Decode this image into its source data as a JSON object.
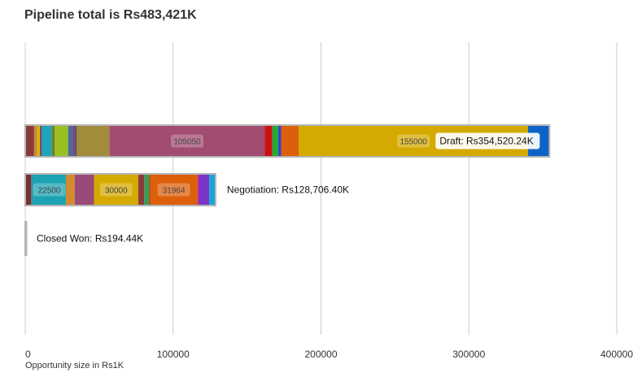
{
  "title": "Pipeline total is Rs483,421K",
  "chart_data": {
    "type": "bar",
    "orientation": "horizontal",
    "stacked": true,
    "title": "Pipeline total is Rs483,421K",
    "xlabel": "Opportunity size in Rs1K",
    "ylabel": "",
    "xlim": [
      0,
      400000
    ],
    "xticks": [
      0,
      100000,
      200000,
      300000,
      400000
    ],
    "grid": true,
    "legend": "none",
    "categories": [
      "Draft",
      "Negotiation",
      "Closed Won"
    ],
    "stage_labels": [
      "Draft: Rs354,520.24K",
      "Negotiation: Rs128,706.40K",
      "Closed Won: Rs194.44K"
    ],
    "bars": [
      {
        "category": "Draft",
        "total": 354520.24,
        "segments": [
          {
            "value": 6000,
            "color": "#8b3a3a",
            "label": ""
          },
          {
            "value": 2000,
            "color": "#c58a3c",
            "label": ""
          },
          {
            "value": 2000,
            "color": "#d8b400",
            "label": ""
          },
          {
            "value": 1000,
            "color": "#8a2f6a",
            "label": ""
          },
          {
            "value": 7000,
            "color": "#1fa6b8",
            "label": ""
          },
          {
            "value": 2000,
            "color": "#6f7f2a",
            "label": ""
          },
          {
            "value": 9000,
            "color": "#9bbf1e",
            "label": ""
          },
          {
            "value": 3000,
            "color": "#4b6b9a",
            "label": ""
          },
          {
            "value": 1500,
            "color": "#7a3b8f",
            "label": ""
          },
          {
            "value": 1500,
            "color": "#5a5a5a",
            "label": ""
          },
          {
            "value": 22000,
            "color": "#a38b3c",
            "label": ""
          },
          {
            "value": 105050,
            "color": "#a24c72",
            "label": "105050"
          },
          {
            "value": 5000,
            "color": "#cc1111",
            "label": ""
          },
          {
            "value": 4000,
            "color": "#22aa33",
            "label": ""
          },
          {
            "value": 2000,
            "color": "#3344cc",
            "label": ""
          },
          {
            "value": 12000,
            "color": "#dd5f0a",
            "label": ""
          },
          {
            "value": 155000,
            "color": "#d4aa00",
            "label": "155000"
          },
          {
            "value": 14470.24,
            "color": "#0c63c6",
            "label": ""
          }
        ]
      },
      {
        "category": "Negotiation",
        "total": 128706.4,
        "segments": [
          {
            "value": 4000,
            "color": "#7a2f2f",
            "label": ""
          },
          {
            "value": 1000,
            "color": "#2a8a9a",
            "label": ""
          },
          {
            "value": 22500,
            "color": "#1ba3b3",
            "label": "22500"
          },
          {
            "value": 6000,
            "color": "#d48a30",
            "label": ""
          },
          {
            "value": 13000,
            "color": "#9a4a78",
            "label": ""
          },
          {
            "value": 30000,
            "color": "#d4aa00",
            "label": "30000"
          },
          {
            "value": 4000,
            "color": "#8b3a3a",
            "label": ""
          },
          {
            "value": 3000,
            "color": "#3a9a55",
            "label": ""
          },
          {
            "value": 1000,
            "color": "#7a5a2a",
            "label": ""
          },
          {
            "value": 31964,
            "color": "#dd5f0a",
            "label": "31964"
          },
          {
            "value": 1000,
            "color": "#cc2288",
            "label": ""
          },
          {
            "value": 7000,
            "color": "#7a35c8",
            "label": ""
          },
          {
            "value": 4242.4,
            "color": "#19a5d6",
            "label": ""
          }
        ]
      },
      {
        "category": "Closed Won",
        "total": 194.44,
        "segments": [
          {
            "value": 194.44,
            "color": "#8b3a6a",
            "label": ""
          }
        ]
      }
    ]
  }
}
